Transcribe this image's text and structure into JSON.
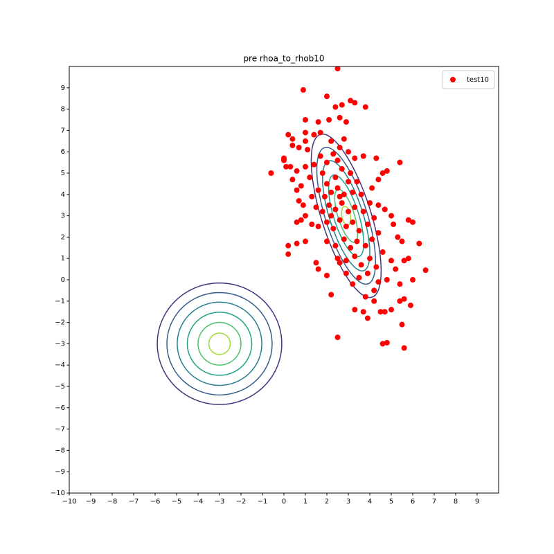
{
  "chart_data": {
    "type": "scatter",
    "title": "pre rhoa_to_rhob10",
    "xlim": [
      -10,
      10
    ],
    "ylim": [
      -10,
      10
    ],
    "xticks": [
      {
        "value": -10,
        "label": "−10"
      },
      {
        "value": -9,
        "label": "−9"
      },
      {
        "value": -8,
        "label": "−8"
      },
      {
        "value": -7,
        "label": "−7"
      },
      {
        "value": -6,
        "label": "−6"
      },
      {
        "value": -5,
        "label": "−5"
      },
      {
        "value": -4,
        "label": "−4"
      },
      {
        "value": -3,
        "label": "−3"
      },
      {
        "value": -2,
        "label": "−2"
      },
      {
        "value": -1,
        "label": "−1"
      },
      0,
      1,
      2,
      3,
      4,
      5,
      6,
      7,
      8,
      9
    ],
    "yticks": [
      {
        "value": -10,
        "label": "−10"
      },
      {
        "value": -9,
        "label": "−9"
      },
      {
        "value": -8,
        "label": "−8"
      },
      {
        "value": -7,
        "label": "−7"
      },
      {
        "value": -6,
        "label": "−6"
      },
      {
        "value": -5,
        "label": "−5"
      },
      {
        "value": -4,
        "label": "−4"
      },
      {
        "value": -3,
        "label": "−3"
      },
      {
        "value": -2,
        "label": "−2"
      },
      {
        "value": -1,
        "label": "−1"
      },
      0,
      1,
      2,
      3,
      4,
      5,
      6,
      7,
      8,
      9
    ],
    "legend": "upper right",
    "contours": [
      {
        "center": [
          -3,
          -3
        ],
        "rx": 2.9,
        "ry": 2.85,
        "angle": 0,
        "color": "#46327e"
      },
      {
        "center": [
          -3,
          -3
        ],
        "rx": 2.45,
        "ry": 2.4,
        "angle": 0,
        "color": "#365c8d"
      },
      {
        "center": [
          -3,
          -3
        ],
        "rx": 1.97,
        "ry": 1.95,
        "angle": 0,
        "color": "#277f8e"
      },
      {
        "center": [
          -3,
          -3
        ],
        "rx": 1.5,
        "ry": 1.48,
        "angle": 0,
        "color": "#1fa187"
      },
      {
        "center": [
          -3,
          -3
        ],
        "rx": 1.0,
        "ry": 1.0,
        "angle": 0,
        "color": "#4ac16d"
      },
      {
        "center": [
          -3,
          -3
        ],
        "rx": 0.5,
        "ry": 0.5,
        "angle": 0,
        "color": "#a0da39"
      },
      {
        "center": [
          2.9,
          3.0
        ],
        "rx": 4.0,
        "ry": 1.15,
        "angle": -72.5,
        "color": "#46327e"
      },
      {
        "center": [
          2.9,
          3.0
        ],
        "rx": 3.35,
        "ry": 0.97,
        "angle": -72.5,
        "color": "#365c8d"
      },
      {
        "center": [
          2.9,
          3.0
        ],
        "rx": 2.7,
        "ry": 0.78,
        "angle": -72.5,
        "color": "#277f8e"
      },
      {
        "center": [
          2.9,
          3.0
        ],
        "rx": 2.0,
        "ry": 0.58,
        "angle": -72.5,
        "color": "#1fa187"
      },
      {
        "center": [
          2.9,
          3.0
        ],
        "rx": 1.3,
        "ry": 0.38,
        "angle": -72.5,
        "color": "#4ac16d"
      },
      {
        "center": [
          2.9,
          3.0
        ],
        "rx": 0.45,
        "ry": 0.2,
        "angle": -80,
        "color": "#a0da39"
      }
    ],
    "series": [
      {
        "name": "test10",
        "color": "#ff0000",
        "x": [
          2.5,
          0.9,
          2.0,
          2.7,
          3.1,
          3.3,
          3.8,
          2.4,
          1.0,
          1.6,
          2.1,
          2.6,
          2.9,
          0.2,
          0.4,
          1.0,
          1.4,
          1.7,
          1.0,
          0.7,
          0.4,
          1.1,
          0.0,
          0.0,
          -0.6,
          0.1,
          0.3,
          0.6,
          1.0,
          0.4,
          0.8,
          0.6,
          1.2,
          3.7,
          4.3,
          5.4,
          4.6,
          4.8,
          4.4,
          0.7,
          0.9,
          1.0,
          0.8,
          0.6,
          1.3,
          0.2,
          0.2,
          0.6,
          1.0,
          1.5,
          1.6,
          2.0,
          2.2,
          2.5,
          3.3,
          3.7,
          3.9,
          4.2,
          4.5,
          4.7,
          5.0,
          5.4,
          5.6,
          5.9,
          5.5,
          4.6,
          4.8,
          5.6,
          5.8,
          5.6,
          6.0,
          6.6,
          6.3,
          5.8,
          6.0,
          5.0,
          5.1,
          5.3,
          5.5,
          5.0,
          5.2,
          5.4,
          4.8,
          4.2,
          3.8,
          3.2,
          2.9,
          2.6,
          2.0,
          2.3,
          2.6,
          2.2,
          2.8,
          3.0,
          3.3,
          1.8,
          2.0,
          2.4,
          2.7,
          3.1,
          3.4,
          1.6,
          1.9,
          2.2,
          2.5,
          2.8,
          3.2,
          3.6,
          1.5,
          1.8,
          2.1,
          2.4,
          2.7,
          3.0,
          3.3,
          3.7,
          4.0,
          1.6,
          2.0,
          2.3,
          2.6,
          2.9,
          3.2,
          3.5,
          3.9,
          4.2,
          2.0,
          2.4,
          2.8,
          3.1,
          3.4,
          3.8,
          4.1,
          4.4,
          2.5,
          2.9,
          3.3,
          3.6,
          4.0,
          4.3,
          4.6,
          3.5,
          3.9,
          4.4,
          2.2,
          2.6,
          3.0,
          2.5,
          1.7,
          1.4,
          4.1,
          4.4,
          4.7,
          1.3
        ],
        "values": [
          9.9,
          8.9,
          8.6,
          8.2,
          8.4,
          8.3,
          8.1,
          8.1,
          7.5,
          7.4,
          7.5,
          7.6,
          7.4,
          6.8,
          6.6,
          6.9,
          6.8,
          6.9,
          6.5,
          6.2,
          6.3,
          6.1,
          5.6,
          5.7,
          5.0,
          5.3,
          5.3,
          5.1,
          5.3,
          4.7,
          4.4,
          4.2,
          4.8,
          5.8,
          5.7,
          5.5,
          5.0,
          5.1,
          4.7,
          3.7,
          3.5,
          3.0,
          2.8,
          2.7,
          2.6,
          1.6,
          1.2,
          1.7,
          1.8,
          0.8,
          0.5,
          0.2,
          -0.7,
          -2.7,
          -1.4,
          -1.5,
          -1.8,
          -1.0,
          -1.5,
          -1.5,
          -1.4,
          -1.0,
          -0.9,
          -1.2,
          -2.1,
          -3.0,
          -2.95,
          -3.2,
          1.0,
          0.9,
          0.0,
          0.45,
          1.7,
          2.8,
          2.7,
          3.0,
          2.6,
          2.0,
          1.8,
          0.9,
          0.5,
          -0.2,
          0.0,
          -0.5,
          -0.8,
          -0.2,
          0.3,
          0.8,
          5.5,
          5.9,
          6.2,
          6.5,
          6.6,
          6.0,
          5.7,
          5.0,
          4.5,
          4.8,
          5.2,
          5.0,
          4.6,
          4.2,
          3.9,
          4.1,
          4.3,
          4.0,
          4.1,
          4.0,
          3.4,
          3.2,
          3.5,
          3.3,
          3.6,
          3.2,
          3.4,
          3.2,
          3.6,
          2.5,
          2.7,
          2.4,
          2.8,
          2.5,
          2.7,
          2.3,
          2.6,
          2.9,
          1.8,
          1.6,
          1.9,
          1.5,
          1.8,
          1.6,
          1.9,
          2.2,
          1.0,
          0.9,
          1.1,
          0.7,
          1.0,
          0.6,
          1.3,
          0.1,
          0.3,
          -0.1,
          3.0,
          3.9,
          4.6,
          5.6,
          5.8,
          5.4,
          4.3,
          3.5,
          3.3,
          3.9
        ]
      }
    ]
  }
}
